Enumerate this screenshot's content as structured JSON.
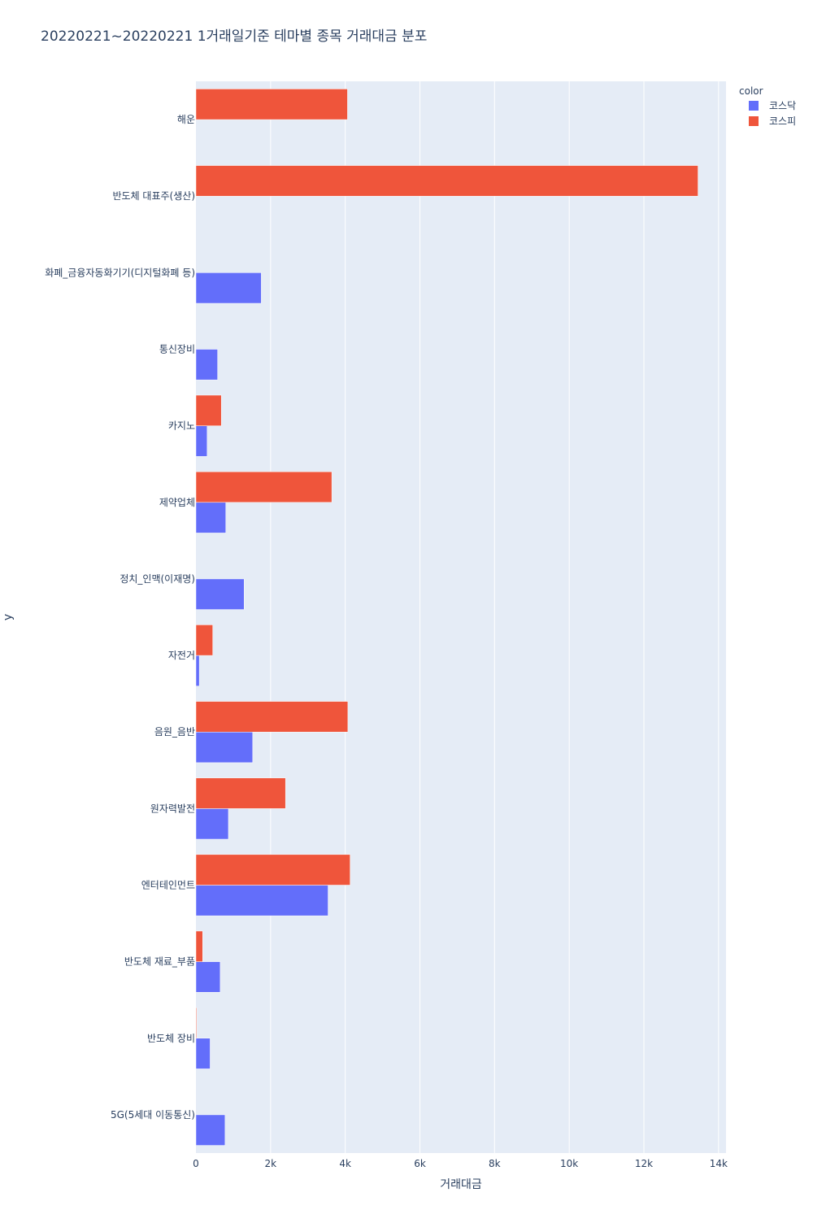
{
  "chart_data": {
    "type": "bar",
    "orientation": "horizontal",
    "barmode": "group",
    "title": "20220221~20220221 1거래일기준 테마별 종목 거래대금 분포",
    "xlabel": "거래대금",
    "ylabel": "y",
    "xlim": [
      0,
      14200
    ],
    "xticks": [
      {
        "value": 0,
        "label": "0"
      },
      {
        "value": 2000,
        "label": "2k"
      },
      {
        "value": 4000,
        "label": "4k"
      },
      {
        "value": 6000,
        "label": "6k"
      },
      {
        "value": 8000,
        "label": "8k"
      },
      {
        "value": 10000,
        "label": "10k"
      },
      {
        "value": 12000,
        "label": "12k"
      },
      {
        "value": 14000,
        "label": "14k"
      }
    ],
    "categories": [
      "해운",
      "반도체 대표주(생산)",
      "화폐_금융자동화기기(디지털화폐 등)",
      "통신장비",
      "카지노",
      "제약업체",
      "정치_인맥(이재명)",
      "자전거",
      "음원_음반",
      "원자력발전",
      "엔터테인먼트",
      "반도체 재료_부품",
      "반도체 장비",
      "5G(5세대 이동통신)"
    ],
    "legend_title": "color",
    "legend_position": "top-right",
    "grid": true,
    "series": [
      {
        "name": "코스닥",
        "color": "#636efa",
        "values": [
          0,
          0,
          1750,
          580,
          300,
          800,
          1290,
          90,
          1520,
          870,
          3540,
          650,
          380,
          780
        ]
      },
      {
        "name": "코스피",
        "color": "#ef553b",
        "values": [
          4060,
          13450,
          0,
          0,
          680,
          3640,
          0,
          450,
          4070,
          2400,
          4130,
          180,
          20,
          0
        ]
      }
    ]
  }
}
